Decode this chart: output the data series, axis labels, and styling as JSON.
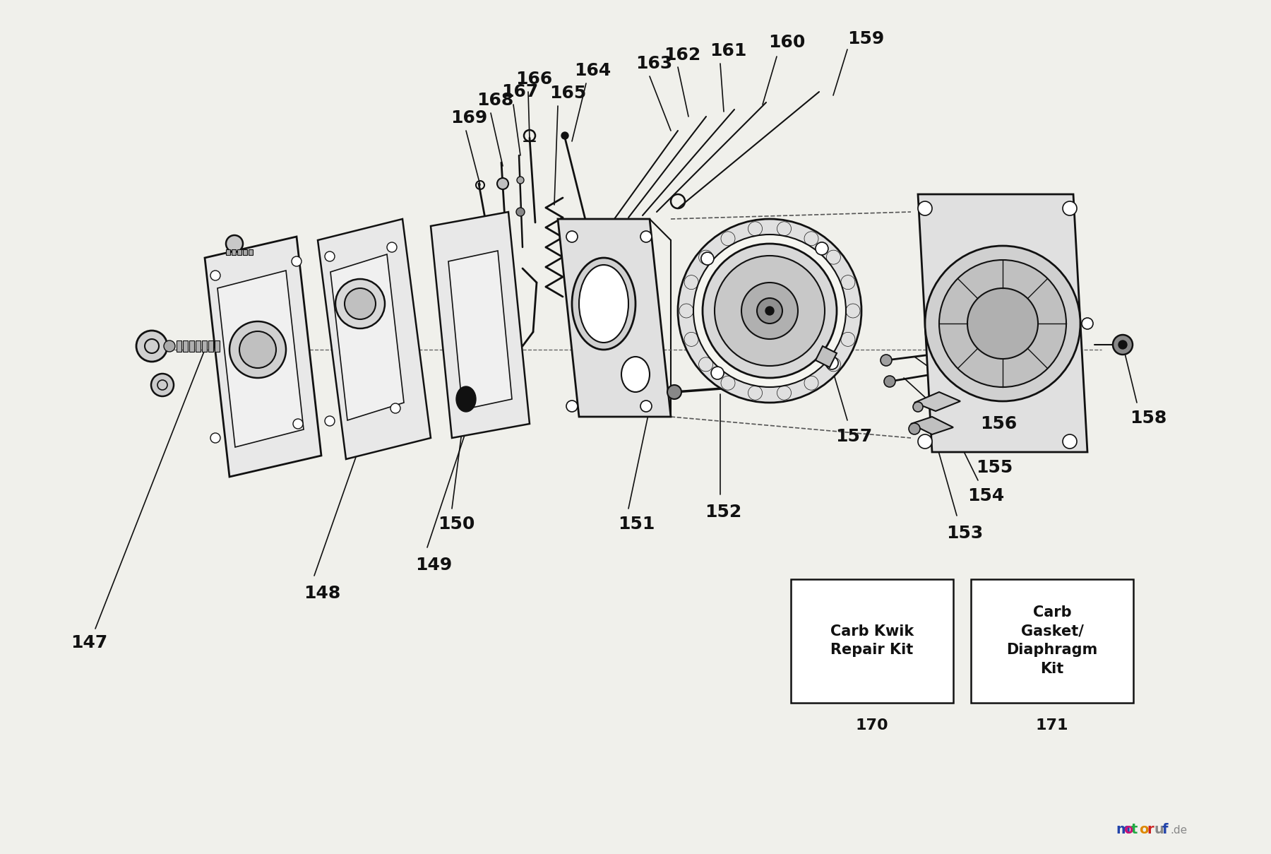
{
  "bg_color": "#f0f0eb",
  "line_color": "#111111",
  "box1_text": "Carb Kwik\nRepair Kit",
  "box2_text": "Carb\nGasket/\nDiaphragm\nKit",
  "box1_label": "170",
  "box2_label": "171",
  "wm_letters": [
    "m",
    "o",
    "t",
    "o",
    "r",
    "u",
    "f"
  ],
  "wm_colors": [
    "#2244aa",
    "#cc1177",
    "#22aa44",
    "#dd8800",
    "#cc2222",
    "#888888",
    "#2244aa"
  ],
  "wm_suffix": ".de",
  "wm_suffix_color": "#888888"
}
